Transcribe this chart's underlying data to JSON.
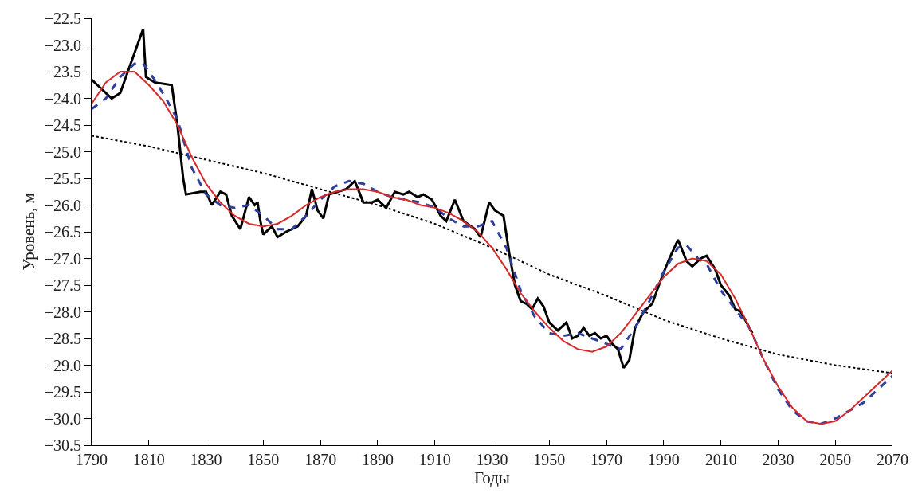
{
  "chart_data": {
    "type": "line",
    "xlabel": "Годы",
    "ylabel": "Уровень, м",
    "grid": false,
    "marker": "none",
    "xlim": [
      1790,
      2070
    ],
    "xticks": [
      1790,
      1810,
      1830,
      1850,
      1870,
      1890,
      1910,
      1930,
      1950,
      1970,
      1990,
      2010,
      2030,
      2050,
      2070
    ],
    "ylim": [
      -30.5,
      -22.5
    ],
    "yticks": [
      {
        "value": -22.5,
        "label": "−22.5"
      },
      {
        "value": -23,
        "label": "−23.0"
      },
      {
        "value": -23.5,
        "label": "−23.5"
      },
      {
        "value": -24,
        "label": "−24.0"
      },
      {
        "value": -24.5,
        "label": "−24.5"
      },
      {
        "value": -25,
        "label": "−25.0"
      },
      {
        "value": -25.5,
        "label": "−25.5"
      },
      {
        "value": -26,
        "label": "−26.0"
      },
      {
        "value": -26.5,
        "label": "−26.5"
      },
      {
        "value": -27,
        "label": "−27.0"
      },
      {
        "value": -27.5,
        "label": "−27.5"
      },
      {
        "value": -28,
        "label": "−28.0"
      },
      {
        "value": -28.5,
        "label": "−28.5"
      },
      {
        "value": -29,
        "label": "−29.0"
      },
      {
        "value": -29.5,
        "label": "−29.5"
      },
      {
        "value": -30,
        "label": "−30.0"
      },
      {
        "value": -30.5,
        "label": "−30.5"
      }
    ],
    "series": [
      {
        "color": "#000000",
        "line_style": "dotted",
        "x": [
          1790,
          1810,
          1830,
          1850,
          1870,
          1890,
          1910,
          1930,
          1950,
          1970,
          1990,
          2010,
          2030,
          2050,
          2070
        ],
        "values": [
          -24.7,
          -24.9,
          -25.15,
          -25.4,
          -25.7,
          -26.0,
          -26.35,
          -26.8,
          -27.3,
          -27.7,
          -28.15,
          -28.5,
          -28.8,
          -29.0,
          -29.15
        ]
      },
      {
        "color": "#000000",
        "line_style": "solid",
        "x": [
          1790,
          1797,
          1800,
          1804,
          1808,
          1809,
          1812,
          1818,
          1820,
          1822,
          1823,
          1828,
          1830,
          1832,
          1835,
          1837,
          1839,
          1842,
          1845,
          1847,
          1848,
          1849,
          1850,
          1853,
          1855,
          1858,
          1862,
          1865,
          1867,
          1869,
          1871,
          1873,
          1876,
          1879,
          1882,
          1885,
          1888,
          1890,
          1893,
          1896,
          1899,
          1901,
          1904,
          1906,
          1909,
          1912,
          1914,
          1917,
          1920,
          1924,
          1926,
          1929,
          1931,
          1934,
          1936,
          1938,
          1940,
          1942,
          1944,
          1946,
          1948,
          1950,
          1953,
          1956,
          1958,
          1960,
          1962,
          1964,
          1966,
          1968,
          1970,
          1972,
          1974,
          1976,
          1978,
          1980,
          1983,
          1986,
          1989,
          1992,
          1995,
          1998,
          2000,
          2003,
          2005,
          2008,
          2010,
          2013,
          2015,
          2017,
          2019,
          2021
        ],
        "values": [
          -23.65,
          -24.0,
          -23.9,
          -23.3,
          -22.7,
          -23.6,
          -23.7,
          -23.75,
          -24.5,
          -25.5,
          -25.8,
          -25.75,
          -25.75,
          -26.0,
          -25.75,
          -25.8,
          -26.2,
          -26.45,
          -25.85,
          -26.0,
          -25.95,
          -26.3,
          -26.55,
          -26.4,
          -26.6,
          -26.5,
          -26.4,
          -26.2,
          -25.7,
          -26.1,
          -26.25,
          -25.8,
          -25.75,
          -25.7,
          -25.55,
          -25.95,
          -25.95,
          -25.9,
          -26.05,
          -25.75,
          -25.8,
          -25.75,
          -25.85,
          -25.8,
          -25.9,
          -26.2,
          -26.3,
          -25.9,
          -26.3,
          -26.45,
          -26.6,
          -25.95,
          -26.1,
          -26.2,
          -26.9,
          -27.5,
          -27.8,
          -27.85,
          -27.95,
          -27.75,
          -27.9,
          -28.2,
          -28.35,
          -28.2,
          -28.5,
          -28.45,
          -28.3,
          -28.45,
          -28.4,
          -28.5,
          -28.45,
          -28.6,
          -28.7,
          -29.05,
          -28.9,
          -28.3,
          -28.0,
          -27.85,
          -27.4,
          -27.0,
          -26.65,
          -27.05,
          -27.15,
          -27.0,
          -26.95,
          -27.2,
          -27.5,
          -27.7,
          -27.95,
          -28.0,
          -28.2,
          -28.4
        ]
      },
      {
        "color": "#2e3f9e",
        "line_style": "dashed",
        "x": [
          1790,
          1795,
          1800,
          1805,
          1808,
          1812,
          1816,
          1820,
          1825,
          1830,
          1835,
          1840,
          1845,
          1850,
          1855,
          1860,
          1865,
          1870,
          1875,
          1880,
          1885,
          1890,
          1895,
          1900,
          1905,
          1910,
          1915,
          1920,
          1925,
          1930,
          1935,
          1940,
          1945,
          1950,
          1955,
          1960,
          1965,
          1970,
          1975,
          1980,
          1985,
          1990,
          1995,
          1998,
          2002,
          2005,
          2010,
          2015,
          2020,
          2025,
          2030,
          2035,
          2040,
          2045,
          2050,
          2055,
          2060,
          2065,
          2070
        ],
        "values": [
          -24.2,
          -24.0,
          -23.6,
          -23.35,
          -23.35,
          -23.65,
          -24.0,
          -24.4,
          -25.3,
          -25.8,
          -26.0,
          -26.05,
          -26.0,
          -26.2,
          -26.45,
          -26.45,
          -26.2,
          -25.9,
          -25.65,
          -25.55,
          -25.6,
          -25.75,
          -25.85,
          -25.9,
          -25.95,
          -26.05,
          -26.25,
          -26.4,
          -26.4,
          -26.3,
          -26.8,
          -27.6,
          -28.1,
          -28.4,
          -28.45,
          -28.4,
          -28.5,
          -28.6,
          -28.7,
          -28.3,
          -27.8,
          -27.25,
          -26.8,
          -26.75,
          -27.0,
          -27.1,
          -27.6,
          -27.95,
          -28.3,
          -28.9,
          -29.45,
          -29.85,
          -30.05,
          -30.1,
          -30.0,
          -29.85,
          -29.7,
          -29.45,
          -29.2
        ]
      },
      {
        "color": "#d42a2a",
        "line_style": "solid",
        "x": [
          1790,
          1795,
          1800,
          1805,
          1810,
          1815,
          1820,
          1825,
          1830,
          1835,
          1840,
          1845,
          1850,
          1855,
          1860,
          1865,
          1870,
          1875,
          1880,
          1885,
          1890,
          1895,
          1900,
          1905,
          1910,
          1915,
          1920,
          1925,
          1930,
          1935,
          1940,
          1945,
          1950,
          1955,
          1960,
          1965,
          1970,
          1975,
          1980,
          1985,
          1990,
          1995,
          2000,
          2005,
          2010,
          2015,
          2020,
          2025,
          2030,
          2035,
          2040,
          2045,
          2050,
          2055,
          2060,
          2065,
          2070
        ],
        "values": [
          -24.1,
          -23.7,
          -23.5,
          -23.5,
          -23.75,
          -24.05,
          -24.5,
          -25.1,
          -25.6,
          -25.95,
          -26.2,
          -26.35,
          -26.4,
          -26.35,
          -26.2,
          -26.0,
          -25.85,
          -25.75,
          -25.7,
          -25.7,
          -25.75,
          -25.85,
          -25.9,
          -26.0,
          -26.05,
          -26.15,
          -26.3,
          -26.5,
          -26.8,
          -27.2,
          -27.65,
          -28.0,
          -28.3,
          -28.55,
          -28.7,
          -28.75,
          -28.65,
          -28.4,
          -28.05,
          -27.7,
          -27.35,
          -27.1,
          -27.0,
          -27.05,
          -27.3,
          -27.75,
          -28.3,
          -28.9,
          -29.4,
          -29.8,
          -30.05,
          -30.1,
          -30.05,
          -29.85,
          -29.6,
          -29.35,
          -29.1
        ]
      }
    ]
  }
}
